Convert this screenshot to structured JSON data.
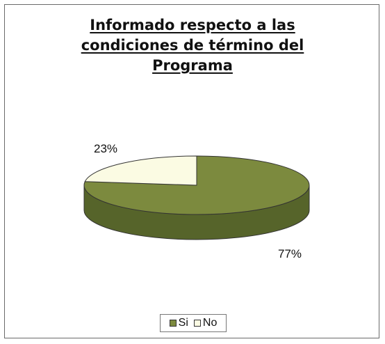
{
  "chart_data": {
    "type": "pie",
    "title_lines": [
      "Informado respecto a las",
      "condiciones de término del",
      "Programa"
    ],
    "categories": [
      "Si",
      "No"
    ],
    "values": [
      77,
      23
    ],
    "labels": [
      "77%",
      "23%"
    ],
    "legend_placement": "bottom",
    "style": "3d",
    "colors": {
      "Si_top": "#7c8a3e",
      "Si_side": "#56642a",
      "No_top": "#fbfbe3",
      "No_side": "#d8d8bd",
      "edge": "#333333"
    }
  }
}
